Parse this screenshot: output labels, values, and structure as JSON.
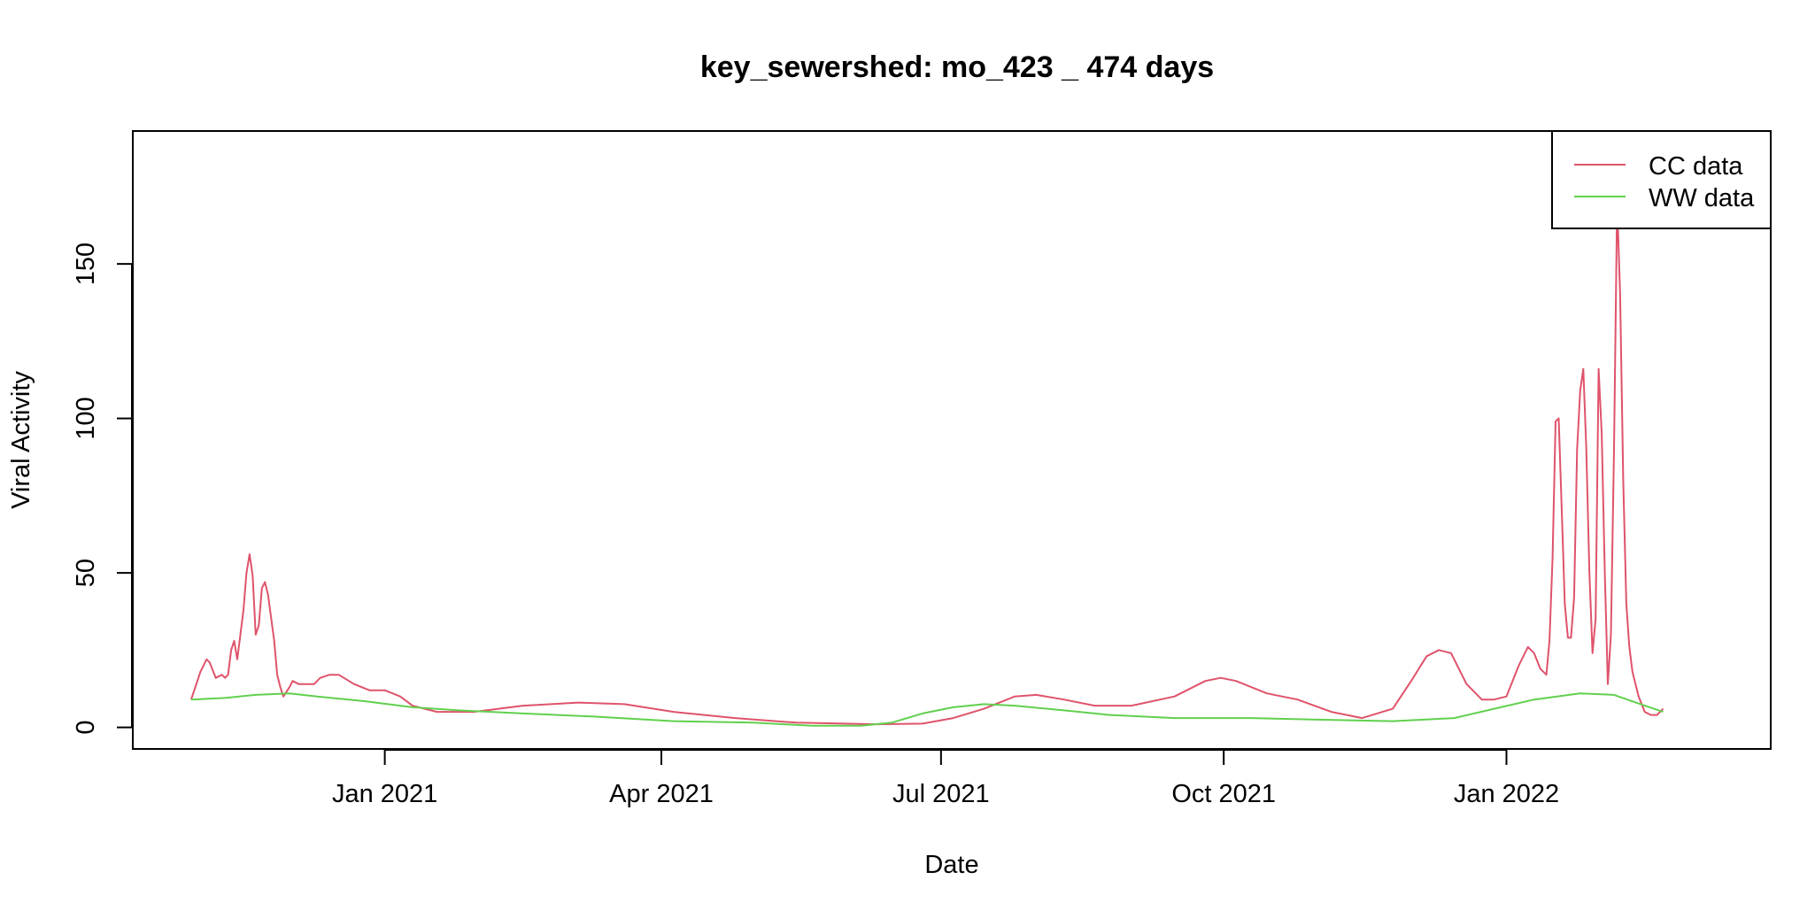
{
  "chart_data": {
    "type": "line",
    "title": "key_sewershed:  mo_423 _ 474  days",
    "xlabel": "Date",
    "ylabel": "Viral Activity",
    "xlim": [
      "2020-10-11",
      "2022-03-28"
    ],
    "ylim": [
      -7,
      193
    ],
    "x_ticks": [
      {
        "date": "2021-01-01",
        "label": "Jan 2021"
      },
      {
        "date": "2021-04-01",
        "label": "Apr 2021"
      },
      {
        "date": "2021-07-01",
        "label": "Jul 2021"
      },
      {
        "date": "2021-10-01",
        "label": "Oct 2021"
      },
      {
        "date": "2022-01-01",
        "label": "Jan 2022"
      }
    ],
    "y_ticks": [
      0,
      50,
      100,
      150
    ],
    "grid": false,
    "legend": {
      "position": "top-right"
    },
    "series": [
      {
        "name": "CC data",
        "color": "#DF536B",
        "points": [
          [
            "2020-10-30",
            9
          ],
          [
            "2020-11-02",
            18
          ],
          [
            "2020-11-04",
            22
          ],
          [
            "2020-11-05",
            21
          ],
          [
            "2020-11-07",
            16
          ],
          [
            "2020-11-09",
            17
          ],
          [
            "2020-11-10",
            16
          ],
          [
            "2020-11-11",
            17
          ],
          [
            "2020-11-12",
            25
          ],
          [
            "2020-11-13",
            28
          ],
          [
            "2020-11-14",
            22
          ],
          [
            "2020-11-16",
            38
          ],
          [
            "2020-11-17",
            50
          ],
          [
            "2020-11-18",
            56
          ],
          [
            "2020-11-19",
            49
          ],
          [
            "2020-11-20",
            30
          ],
          [
            "2020-11-21",
            33
          ],
          [
            "2020-11-22",
            45
          ],
          [
            "2020-11-23",
            47
          ],
          [
            "2020-11-24",
            43
          ],
          [
            "2020-11-26",
            28
          ],
          [
            "2020-11-27",
            17
          ],
          [
            "2020-11-28",
            13
          ],
          [
            "2020-11-29",
            10
          ],
          [
            "2020-12-01",
            13
          ],
          [
            "2020-12-02",
            15
          ],
          [
            "2020-12-04",
            14
          ],
          [
            "2020-12-07",
            14
          ],
          [
            "2020-12-09",
            14
          ],
          [
            "2020-12-11",
            16
          ],
          [
            "2020-12-14",
            17
          ],
          [
            "2020-12-17",
            17
          ],
          [
            "2020-12-22",
            14
          ],
          [
            "2020-12-27",
            12
          ],
          [
            "2021-01-01",
            12
          ],
          [
            "2021-01-06",
            10
          ],
          [
            "2021-01-10",
            7
          ],
          [
            "2021-01-18",
            5
          ],
          [
            "2021-01-30",
            5
          ],
          [
            "2021-02-15",
            7
          ],
          [
            "2021-03-05",
            8
          ],
          [
            "2021-03-20",
            7.5
          ],
          [
            "2021-04-05",
            5
          ],
          [
            "2021-04-25",
            3
          ],
          [
            "2021-05-15",
            1.5
          ],
          [
            "2021-06-10",
            1
          ],
          [
            "2021-06-25",
            1.2
          ],
          [
            "2021-07-05",
            3
          ],
          [
            "2021-07-15",
            6
          ],
          [
            "2021-07-25",
            10
          ],
          [
            "2021-08-01",
            10.5
          ],
          [
            "2021-08-10",
            9
          ],
          [
            "2021-08-20",
            7
          ],
          [
            "2021-09-01",
            7
          ],
          [
            "2021-09-15",
            10
          ],
          [
            "2021-09-25",
            15
          ],
          [
            "2021-09-30",
            16
          ],
          [
            "2021-10-05",
            15
          ],
          [
            "2021-10-15",
            11
          ],
          [
            "2021-10-25",
            9
          ],
          [
            "2021-11-05",
            5
          ],
          [
            "2021-11-15",
            3
          ],
          [
            "2021-11-25",
            6
          ],
          [
            "2021-12-01",
            15
          ],
          [
            "2021-12-06",
            23
          ],
          [
            "2021-12-10",
            25
          ],
          [
            "2021-12-14",
            24
          ],
          [
            "2021-12-19",
            14
          ],
          [
            "2021-12-24",
            9
          ],
          [
            "2021-12-28",
            9
          ],
          [
            "2022-01-01",
            10
          ],
          [
            "2022-01-05",
            20
          ],
          [
            "2022-01-08",
            26
          ],
          [
            "2022-01-10",
            24
          ],
          [
            "2022-01-12",
            19
          ],
          [
            "2022-01-14",
            17
          ],
          [
            "2022-01-15",
            28
          ],
          [
            "2022-01-16",
            55
          ],
          [
            "2022-01-17",
            99
          ],
          [
            "2022-01-18",
            100
          ],
          [
            "2022-01-19",
            70
          ],
          [
            "2022-01-20",
            40
          ],
          [
            "2022-01-21",
            29
          ],
          [
            "2022-01-22",
            29
          ],
          [
            "2022-01-23",
            42
          ],
          [
            "2022-01-24",
            90
          ],
          [
            "2022-01-25",
            109
          ],
          [
            "2022-01-26",
            116
          ],
          [
            "2022-01-27",
            90
          ],
          [
            "2022-01-28",
            50
          ],
          [
            "2022-01-29",
            24
          ],
          [
            "2022-01-30",
            35
          ],
          [
            "2022-01-31",
            116
          ],
          [
            "2022-02-01",
            95
          ],
          [
            "2022-02-02",
            50
          ],
          [
            "2022-02-03",
            14
          ],
          [
            "2022-02-04",
            30
          ],
          [
            "2022-02-05",
            90
          ],
          [
            "2022-02-06",
            170
          ],
          [
            "2022-02-07",
            140
          ],
          [
            "2022-02-08",
            80
          ],
          [
            "2022-02-09",
            40
          ],
          [
            "2022-02-10",
            26
          ],
          [
            "2022-02-11",
            18
          ],
          [
            "2022-02-13",
            10
          ],
          [
            "2022-02-15",
            5
          ],
          [
            "2022-02-17",
            4
          ],
          [
            "2022-02-19",
            4
          ],
          [
            "2022-02-21",
            6
          ]
        ]
      },
      {
        "name": "WW data",
        "color": "#61D04F",
        "points": [
          [
            "2020-10-30",
            9
          ],
          [
            "2020-11-10",
            9.5
          ],
          [
            "2020-11-20",
            10.5
          ],
          [
            "2020-12-01",
            11
          ],
          [
            "2020-12-10",
            10
          ],
          [
            "2020-12-25",
            8.5
          ],
          [
            "2021-01-10",
            6.5
          ],
          [
            "2021-01-25",
            5.5
          ],
          [
            "2021-02-15",
            4.5
          ],
          [
            "2021-03-10",
            3.5
          ],
          [
            "2021-04-05",
            2
          ],
          [
            "2021-05-01",
            1.5
          ],
          [
            "2021-05-20",
            0.5
          ],
          [
            "2021-06-05",
            0.5
          ],
          [
            "2021-06-15",
            1.5
          ],
          [
            "2021-06-25",
            4.5
          ],
          [
            "2021-07-05",
            6.5
          ],
          [
            "2021-07-15",
            7.5
          ],
          [
            "2021-07-25",
            7
          ],
          [
            "2021-08-10",
            5.5
          ],
          [
            "2021-08-25",
            4
          ],
          [
            "2021-09-15",
            3
          ],
          [
            "2021-10-10",
            3
          ],
          [
            "2021-10-30",
            2.5
          ],
          [
            "2021-11-25",
            2
          ],
          [
            "2021-12-15",
            3
          ],
          [
            "2021-12-28",
            6
          ],
          [
            "2022-01-10",
            9
          ],
          [
            "2022-01-25",
            11
          ],
          [
            "2022-02-05",
            10.5
          ],
          [
            "2022-02-15",
            7
          ],
          [
            "2022-02-21",
            5
          ]
        ]
      }
    ]
  }
}
